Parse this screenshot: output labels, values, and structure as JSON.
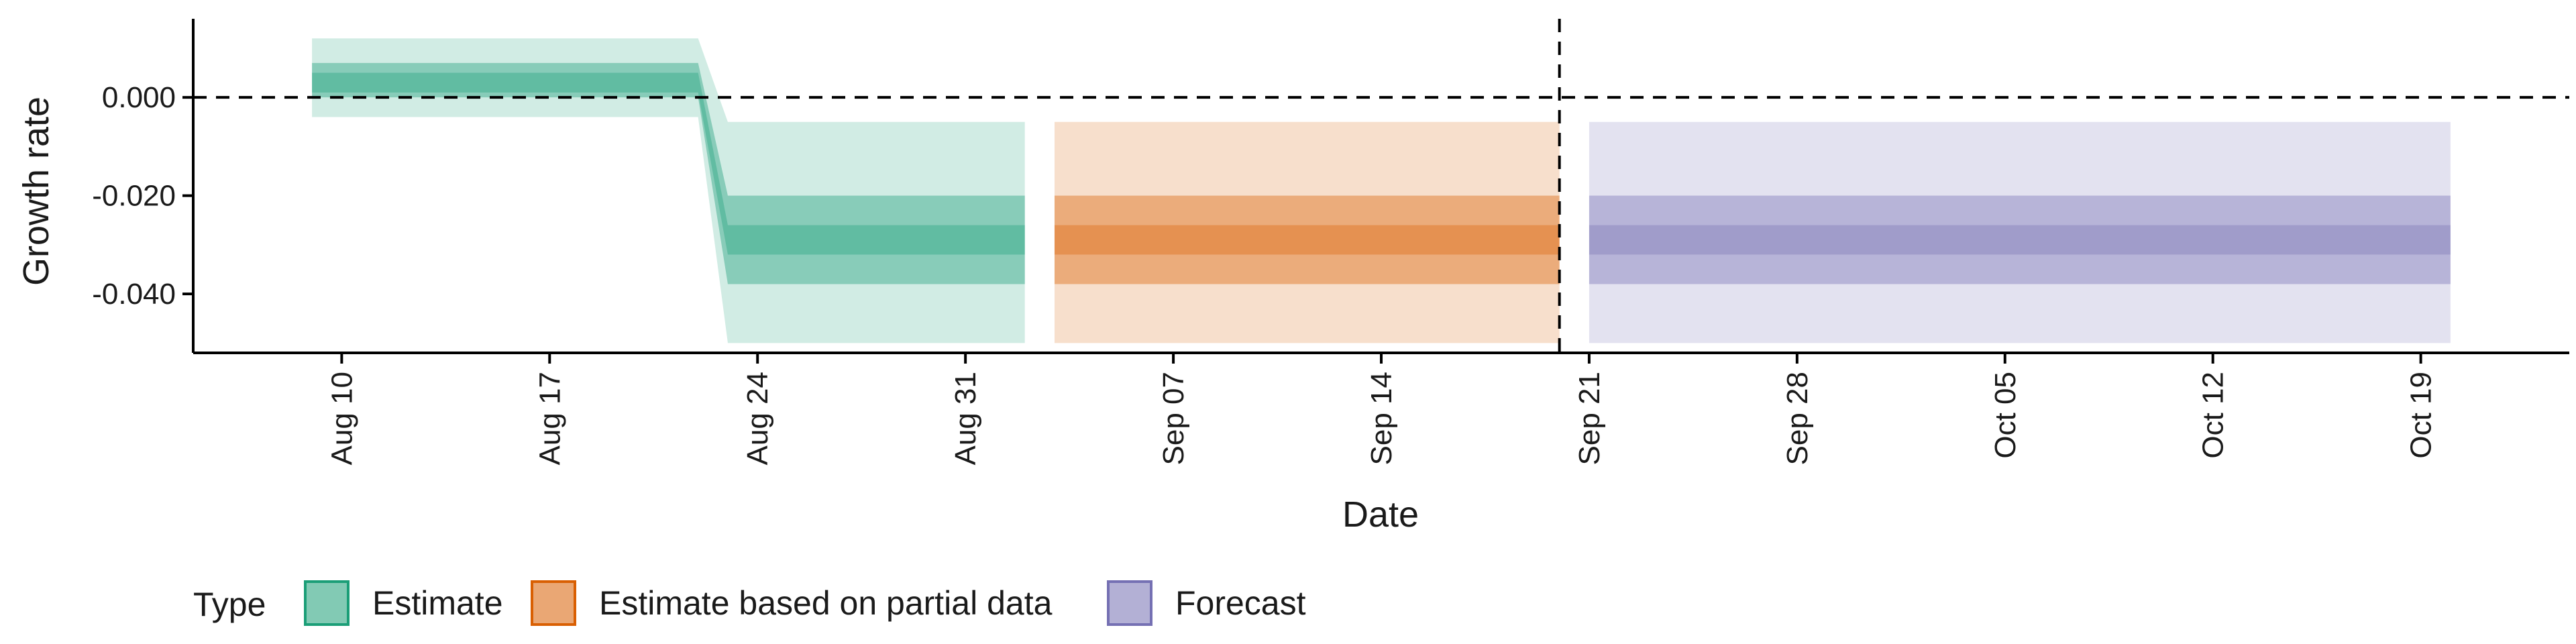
{
  "chart_data": {
    "type": "area",
    "title": "",
    "xlabel": "Date",
    "ylabel": "Growth rate",
    "x_ticks": [
      "2023-08-10",
      "2023-08-17",
      "2023-08-24",
      "2023-08-31",
      "2023-09-07",
      "2023-09-14",
      "2023-09-21",
      "2023-09-28",
      "2023-10-05",
      "2023-10-12",
      "2023-10-19"
    ],
    "x_tick_labels": [
      "Aug 10",
      "Aug 17",
      "Aug 24",
      "Aug 31",
      "Sep 07",
      "Sep 14",
      "Sep 21",
      "Sep 28",
      "Oct 05",
      "Oct 12",
      "Oct 19"
    ],
    "xlim": [
      "2023-08-05",
      "2023-10-24"
    ],
    "y_ticks": [
      0.0,
      -0.02,
      -0.04
    ],
    "y_tick_labels": [
      "0.000",
      "-0.020",
      "-0.040"
    ],
    "ylim": [
      -0.052,
      0.016
    ],
    "reference_lines": {
      "horizontal_y": 0.0,
      "vertical_x": "2023-09-20"
    },
    "grid": false,
    "legend": {
      "title": "Type",
      "placement": "bottom-left",
      "entries": [
        {
          "label": "Estimate",
          "color": "#1B9E77"
        },
        {
          "label": "Estimate based on partial data",
          "color": "#D95F02"
        },
        {
          "label": "Forecast",
          "color": "#7570B3"
        }
      ]
    },
    "series": [
      {
        "name": "Estimate",
        "color": "#1B9E77",
        "x": [
          "2023-08-09",
          "2023-08-22",
          "2023-08-23",
          "2023-09-02"
        ],
        "lower_90": [
          -0.004,
          -0.004,
          -0.05,
          -0.05
        ],
        "upper_90": [
          0.012,
          0.012,
          -0.005,
          -0.005
        ],
        "lower_50": [
          0.0,
          0.0,
          -0.038,
          -0.038
        ],
        "upper_50": [
          0.007,
          0.007,
          -0.02,
          -0.02
        ],
        "lower_20": [
          0.001,
          0.001,
          -0.032,
          -0.032
        ],
        "upper_20": [
          0.005,
          0.005,
          -0.026,
          -0.026
        ]
      },
      {
        "name": "Estimate based on partial data",
        "color": "#D95F02",
        "x": [
          "2023-09-03",
          "2023-09-20"
        ],
        "lower_90": [
          -0.05,
          -0.05
        ],
        "upper_90": [
          -0.005,
          -0.005
        ],
        "lower_50": [
          -0.038,
          -0.038
        ],
        "upper_50": [
          -0.02,
          -0.02
        ],
        "lower_20": [
          -0.032,
          -0.032
        ],
        "upper_20": [
          -0.026,
          -0.026
        ]
      },
      {
        "name": "Forecast",
        "color": "#7570B3",
        "x": [
          "2023-09-21",
          "2023-10-20"
        ],
        "lower_90": [
          -0.05,
          -0.05
        ],
        "upper_90": [
          -0.005,
          -0.005
        ],
        "lower_50": [
          -0.038,
          -0.038
        ],
        "upper_50": [
          -0.02,
          -0.02
        ],
        "lower_20": [
          -0.032,
          -0.032
        ],
        "upper_20": [
          -0.026,
          -0.026
        ]
      }
    ]
  }
}
